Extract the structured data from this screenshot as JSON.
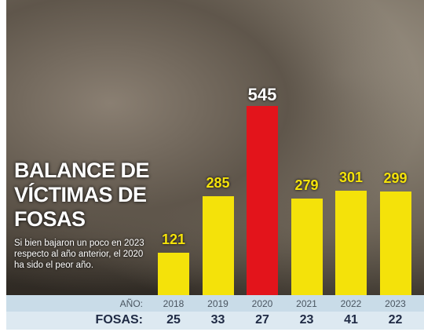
{
  "chart_data": {
    "type": "bar",
    "title": "BALANCE DE VÍCTIMAS DE FOSAS",
    "subtitle": "Si bien bajaron un poco en 2023 respecto al año anterior, el 2020 ha sido el peor año.",
    "category_label": "AÑO:",
    "categories": [
      "2018",
      "2019",
      "2020",
      "2021",
      "2022",
      "2023"
    ],
    "values": [
      121,
      285,
      545,
      279,
      301,
      299
    ],
    "colors": [
      "#f4e20a",
      "#f4e20a",
      "#e3141b",
      "#f4e20a",
      "#f4e20a",
      "#f4e20a"
    ],
    "value_label_colors": [
      "#f4e20a",
      "#f4e20a",
      "#ffffff",
      "#f4e20a",
      "#f4e20a",
      "#f4e20a"
    ],
    "fosas": {
      "label": "FOSAS:",
      "values": [
        25,
        33,
        27,
        23,
        41,
        22
      ]
    }
  }
}
